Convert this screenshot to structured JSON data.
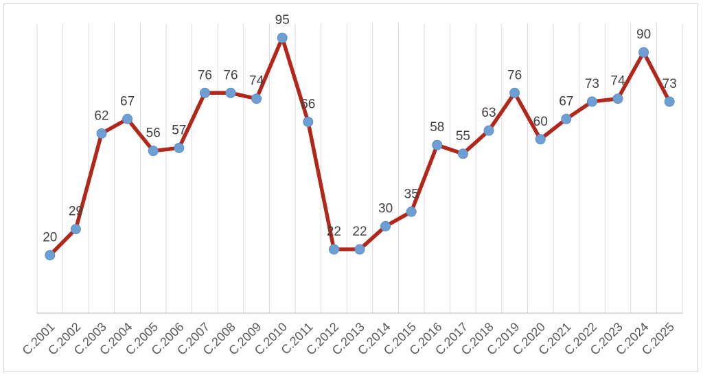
{
  "frame": {
    "background_color": "#ffffff",
    "border_color": "#d2d2d2"
  },
  "chart_data": {
    "type": "line",
    "title": "",
    "xlabel": "",
    "ylabel": "",
    "categories": [
      "C.2001",
      "C.2002",
      "C.2003",
      "C.2004",
      "C.2005",
      "C.2006",
      "C.2007",
      "C.2008",
      "C.2009",
      "C.2010",
      "C.2011",
      "C.2012",
      "C.2013",
      "C.2014",
      "C.2015",
      "C.2016",
      "C.2017",
      "C.2018",
      "C.2019",
      "C.2020",
      "C.2021",
      "C.2022",
      "C.2023",
      "C.2024",
      "C.2025"
    ],
    "values": [
      20,
      29,
      62,
      67,
      56,
      57,
      76,
      76,
      74,
      95,
      66,
      22,
      22,
      30,
      35,
      58,
      55,
      63,
      76,
      60,
      67,
      73,
      74,
      90,
      73
    ],
    "data_labels_shown": true,
    "ylim": [
      0,
      100
    ],
    "y_axis_labels_shown": false,
    "grid": "vertical-only",
    "legend": "none",
    "x_tick_rotation_deg": -45,
    "colors": {
      "line": "#b2271a",
      "marker_fill": "#6d9fd4",
      "marker_stroke": "#5d8fc6",
      "data_label": "#404040",
      "axis_tick_label": "#595959",
      "gridline": "#d9d9d9",
      "axis_line": "#c3c3c3"
    }
  }
}
